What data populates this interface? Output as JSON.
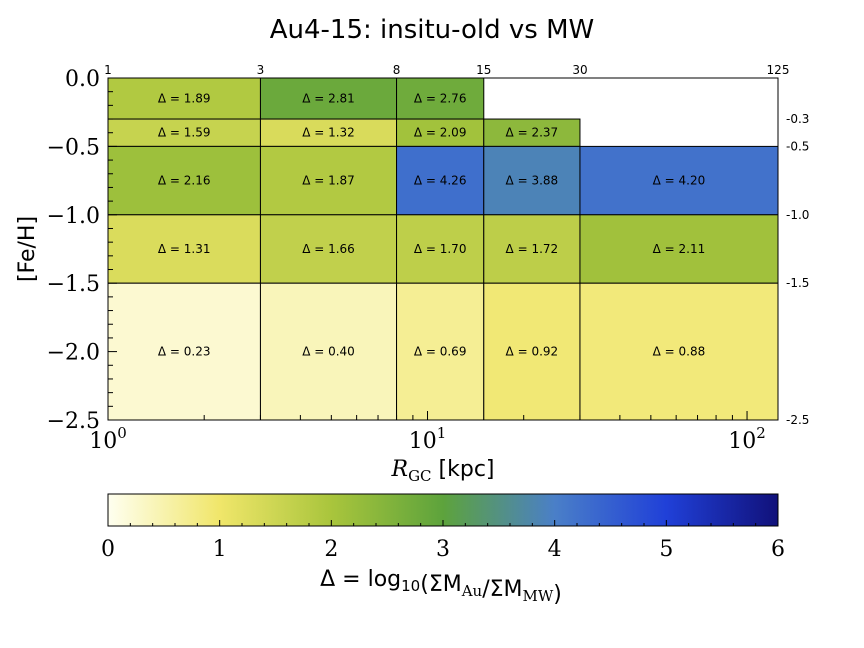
{
  "chart_data": {
    "type": "heatmap",
    "title": "Au4-15: insitu-old vs MW",
    "xlabel": "R_GC [kpc]",
    "ylabel": "[Fe/H]",
    "xscale": "log",
    "xlim": [
      1,
      125
    ],
    "ylim": [
      -2.5,
      0.0
    ],
    "x_tick_labels": [
      "10^0",
      "10^1",
      "10^2"
    ],
    "y_tick_labels": [
      "0.0",
      "−0.5",
      "−1.0",
      "−1.5",
      "−2.0",
      "−2.5"
    ],
    "top_bin_edges": [
      "1",
      "3",
      "8",
      "15",
      "30",
      "125"
    ],
    "right_bin_edges": [
      "-0.3",
      "-0.5",
      "-1.0",
      "-1.5",
      "-2.5"
    ],
    "cells": [
      {
        "x0": 1,
        "x1": 3,
        "y0": -0.3,
        "y1": 0.0,
        "value": 1.89,
        "label": "Δ = 1.89"
      },
      {
        "x0": 3,
        "x1": 8,
        "y0": -0.3,
        "y1": 0.0,
        "value": 2.81,
        "label": "Δ = 2.81"
      },
      {
        "x0": 8,
        "x1": 15,
        "y0": -0.3,
        "y1": 0.0,
        "value": 2.76,
        "label": "Δ = 2.76"
      },
      {
        "x0": 1,
        "x1": 3,
        "y0": -0.5,
        "y1": -0.3,
        "value": 1.59,
        "label": "Δ = 1.59"
      },
      {
        "x0": 3,
        "x1": 8,
        "y0": -0.5,
        "y1": -0.3,
        "value": 1.32,
        "label": "Δ = 1.32"
      },
      {
        "x0": 8,
        "x1": 15,
        "y0": -0.5,
        "y1": -0.3,
        "value": 2.09,
        "label": "Δ = 2.09"
      },
      {
        "x0": 15,
        "x1": 30,
        "y0": -0.5,
        "y1": -0.3,
        "value": 2.37,
        "label": "Δ = 2.37"
      },
      {
        "x0": 1,
        "x1": 3,
        "y0": -1.0,
        "y1": -0.5,
        "value": 2.16,
        "label": "Δ = 2.16"
      },
      {
        "x0": 3,
        "x1": 8,
        "y0": -1.0,
        "y1": -0.5,
        "value": 1.87,
        "label": "Δ = 1.87"
      },
      {
        "x0": 8,
        "x1": 15,
        "y0": -1.0,
        "y1": -0.5,
        "value": 4.26,
        "label": "Δ = 4.26"
      },
      {
        "x0": 15,
        "x1": 30,
        "y0": -1.0,
        "y1": -0.5,
        "value": 3.88,
        "label": "Δ = 3.88"
      },
      {
        "x0": 30,
        "x1": 125,
        "y0": -1.0,
        "y1": -0.5,
        "value": 4.2,
        "label": "Δ = 4.20"
      },
      {
        "x0": 1,
        "x1": 3,
        "y0": -1.5,
        "y1": -1.0,
        "value": 1.31,
        "label": "Δ = 1.31"
      },
      {
        "x0": 3,
        "x1": 8,
        "y0": -1.5,
        "y1": -1.0,
        "value": 1.66,
        "label": "Δ = 1.66"
      },
      {
        "x0": 8,
        "x1": 15,
        "y0": -1.5,
        "y1": -1.0,
        "value": 1.7,
        "label": "Δ = 1.70"
      },
      {
        "x0": 15,
        "x1": 30,
        "y0": -1.5,
        "y1": -1.0,
        "value": 1.72,
        "label": "Δ = 1.72"
      },
      {
        "x0": 30,
        "x1": 125,
        "y0": -1.5,
        "y1": -1.0,
        "value": 2.11,
        "label": "Δ = 2.11"
      },
      {
        "x0": 1,
        "x1": 3,
        "y0": -2.5,
        "y1": -1.5,
        "value": 0.23,
        "label": "Δ = 0.23"
      },
      {
        "x0": 3,
        "x1": 8,
        "y0": -2.5,
        "y1": -1.5,
        "value": 0.4,
        "label": "Δ = 0.40"
      },
      {
        "x0": 8,
        "x1": 15,
        "y0": -2.5,
        "y1": -1.5,
        "value": 0.69,
        "label": "Δ = 0.69"
      },
      {
        "x0": 15,
        "x1": 30,
        "y0": -2.5,
        "y1": -1.5,
        "value": 0.92,
        "label": "Δ = 0.92"
      },
      {
        "x0": 30,
        "x1": 125,
        "y0": -2.5,
        "y1": -1.5,
        "value": 0.88,
        "label": "Δ = 0.88"
      }
    ],
    "colorbar": {
      "label": "Δ = log10(ΣM_Au/ΣM_MW)",
      "range": [
        0,
        6
      ],
      "ticks": [
        "0",
        "1",
        "2",
        "3",
        "4",
        "5",
        "6"
      ],
      "colors": [
        "#fffff0",
        "#f0e66a",
        "#a9c53c",
        "#5da33c",
        "#4a7fc8",
        "#2040d8",
        "#11117a"
      ]
    },
    "grid": false
  }
}
